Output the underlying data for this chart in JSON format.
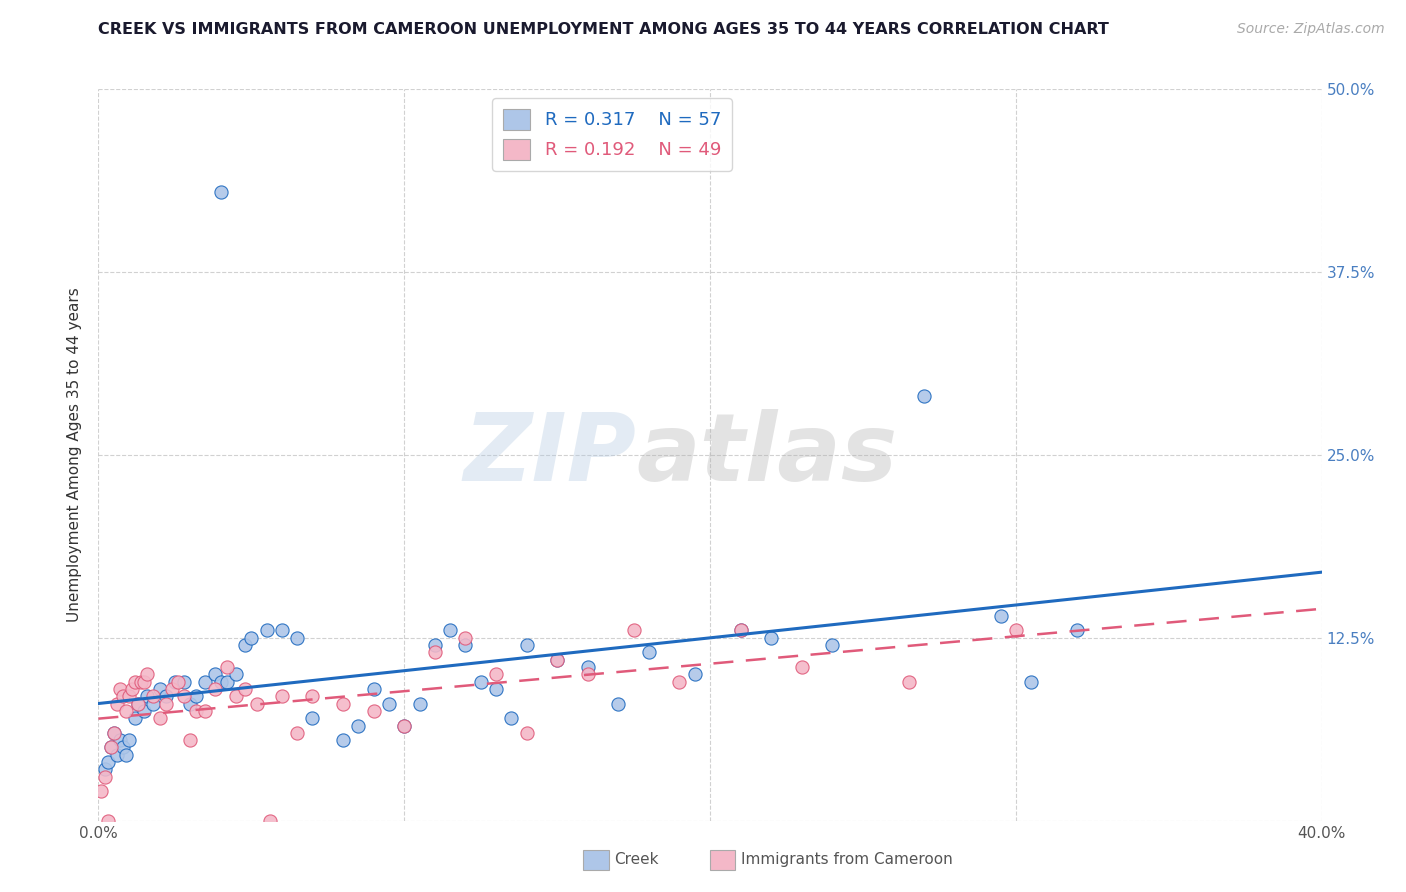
{
  "title": "CREEK VS IMMIGRANTS FROM CAMEROON UNEMPLOYMENT AMONG AGES 35 TO 44 YEARS CORRELATION CHART",
  "source": "Source: ZipAtlas.com",
  "ylabel": "Unemployment Among Ages 35 to 44 years",
  "xlim": [
    0.0,
    0.4
  ],
  "ylim": [
    0.0,
    0.5
  ],
  "xticks": [
    0.0,
    0.1,
    0.2,
    0.3,
    0.4
  ],
  "xticklabels_outer": [
    "0.0%",
    "",
    "",
    "",
    "40.0%"
  ],
  "yticks": [
    0.0,
    0.125,
    0.25,
    0.375,
    0.5
  ],
  "yticklabels_right": [
    "",
    "12.5%",
    "25.0%",
    "37.5%",
    "50.0%"
  ],
  "creek_color": "#aec6e8",
  "creek_line_color": "#1f6abf",
  "cameroon_color": "#f4b8c8",
  "cameroon_line_color": "#e05a7a",
  "background_color": "#ffffff",
  "grid_color": "#cccccc",
  "watermark_zip": "ZIP",
  "watermark_atlas": "atlas",
  "legend_r1": "R = 0.317",
  "legend_n1": "N = 57",
  "legend_r2": "R = 0.192",
  "legend_n2": "N = 49",
  "creek_x": [
    0.002,
    0.003,
    0.004,
    0.005,
    0.006,
    0.007,
    0.008,
    0.009,
    0.01,
    0.012,
    0.013,
    0.015,
    0.016,
    0.018,
    0.02,
    0.022,
    0.025,
    0.028,
    0.03,
    0.032,
    0.035,
    0.038,
    0.04,
    0.042,
    0.045,
    0.048,
    0.05,
    0.055,
    0.06,
    0.065,
    0.07,
    0.08,
    0.085,
    0.09,
    0.095,
    0.1,
    0.105,
    0.11,
    0.115,
    0.12,
    0.125,
    0.13,
    0.135,
    0.14,
    0.15,
    0.16,
    0.17,
    0.18,
    0.195,
    0.21,
    0.22,
    0.24,
    0.27,
    0.295,
    0.305,
    0.32,
    0.04
  ],
  "creek_y": [
    0.035,
    0.04,
    0.05,
    0.06,
    0.045,
    0.055,
    0.05,
    0.045,
    0.055,
    0.07,
    0.08,
    0.075,
    0.085,
    0.08,
    0.09,
    0.085,
    0.095,
    0.095,
    0.08,
    0.085,
    0.095,
    0.1,
    0.095,
    0.095,
    0.1,
    0.12,
    0.125,
    0.13,
    0.13,
    0.125,
    0.07,
    0.055,
    0.065,
    0.09,
    0.08,
    0.065,
    0.08,
    0.12,
    0.13,
    0.12,
    0.095,
    0.09,
    0.07,
    0.12,
    0.11,
    0.105,
    0.08,
    0.115,
    0.1,
    0.13,
    0.125,
    0.12,
    0.29,
    0.14,
    0.095,
    0.13,
    0.43
  ],
  "cameroon_x": [
    0.001,
    0.002,
    0.003,
    0.004,
    0.005,
    0.006,
    0.007,
    0.008,
    0.009,
    0.01,
    0.011,
    0.012,
    0.013,
    0.014,
    0.015,
    0.016,
    0.018,
    0.02,
    0.022,
    0.024,
    0.026,
    0.028,
    0.03,
    0.032,
    0.035,
    0.038,
    0.042,
    0.045,
    0.048,
    0.052,
    0.056,
    0.06,
    0.065,
    0.07,
    0.08,
    0.09,
    0.1,
    0.11,
    0.12,
    0.13,
    0.14,
    0.15,
    0.16,
    0.175,
    0.19,
    0.21,
    0.23,
    0.265,
    0.3
  ],
  "cameroon_y": [
    0.02,
    0.03,
    0.0,
    0.05,
    0.06,
    0.08,
    0.09,
    0.085,
    0.075,
    0.085,
    0.09,
    0.095,
    0.08,
    0.095,
    0.095,
    0.1,
    0.085,
    0.07,
    0.08,
    0.09,
    0.095,
    0.085,
    0.055,
    0.075,
    0.075,
    0.09,
    0.105,
    0.085,
    0.09,
    0.08,
    0.0,
    0.085,
    0.06,
    0.085,
    0.08,
    0.075,
    0.065,
    0.115,
    0.125,
    0.1,
    0.06,
    0.11,
    0.1,
    0.13,
    0.095,
    0.13,
    0.105,
    0.095,
    0.13
  ]
}
